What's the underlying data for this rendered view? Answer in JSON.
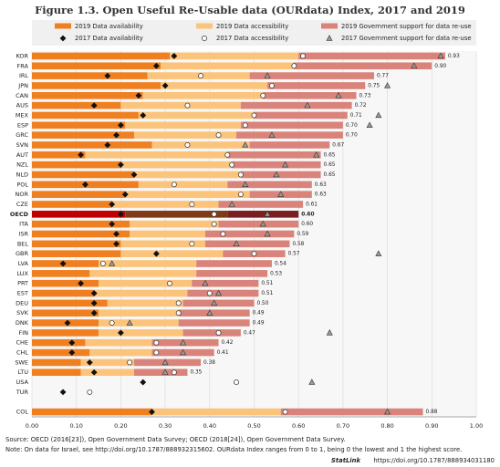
{
  "chart_data": {
    "type": "stacked-bar-markers",
    "title": "Figure 1.3. Open Useful Re-Usable data (OURdata) Index, 2017 and 2019",
    "categories": [
      "KOR",
      "FRA",
      "IRL",
      "JPN",
      "CAN",
      "AUS",
      "MEX",
      "ESP",
      "GRC",
      "SVN",
      "AUT",
      "NZL",
      "NLD",
      "POL",
      "NOR",
      "CZE",
      "OECD",
      "ITA",
      "ISR",
      "BEL",
      "GBR",
      "LVA",
      "LUX",
      "PRT",
      "EST",
      "DEU",
      "SVK",
      "DNK",
      "FIN",
      "CHE",
      "CHL",
      "SWE",
      "LTU",
      "USA",
      "TUR",
      null,
      "COL"
    ],
    "highlight": "OECD",
    "series": [
      {
        "name": "2019 Data availability",
        "color": "#f07f1f",
        "highlight_color": "#c00000",
        "values": [
          0.31,
          0.29,
          0.26,
          0.29,
          0.25,
          0.2,
          0.24,
          0.21,
          0.23,
          0.27,
          0.12,
          0.2,
          0.23,
          0.24,
          0.21,
          0.18,
          0.21,
          0.22,
          0.22,
          0.2,
          0.2,
          0.15,
          0.13,
          0.15,
          0.14,
          0.17,
          0.15,
          0.15,
          0.15,
          0.12,
          0.13,
          0.11,
          0.11,
          null,
          null,
          null,
          0.27
        ]
      },
      {
        "name": "2019 Data accessibility",
        "color": "#fbc47a",
        "highlight_color": "#7f3b16",
        "values": [
          0.29,
          0.3,
          0.23,
          0.24,
          0.27,
          0.27,
          0.26,
          0.26,
          0.23,
          0.22,
          0.32,
          0.25,
          0.24,
          0.2,
          0.28,
          0.24,
          0.23,
          0.2,
          0.17,
          0.19,
          0.23,
          0.22,
          0.24,
          0.21,
          0.21,
          0.17,
          0.18,
          0.18,
          0.19,
          0.15,
          0.14,
          0.12,
          0.12,
          null,
          null,
          null,
          0.29
        ]
      },
      {
        "name": "2019 Government support for data re-use",
        "color": "#d9837a",
        "highlight_color": "#7a1f1f",
        "values": [
          0.33,
          0.31,
          0.28,
          0.22,
          0.21,
          0.25,
          0.21,
          0.23,
          0.24,
          0.18,
          0.21,
          0.2,
          0.18,
          0.19,
          0.14,
          0.19,
          0.16,
          0.18,
          0.2,
          0.19,
          0.14,
          0.17,
          0.16,
          0.15,
          0.16,
          0.16,
          0.16,
          0.16,
          0.13,
          0.15,
          0.14,
          0.15,
          0.12,
          null,
          null,
          null,
          0.32
        ]
      }
    ],
    "totals": [
      0.93,
      0.9,
      0.77,
      0.75,
      0.73,
      0.72,
      0.71,
      0.7,
      0.7,
      0.67,
      0.65,
      0.65,
      0.65,
      0.63,
      0.63,
      0.61,
      0.6,
      0.6,
      0.59,
      0.58,
      0.57,
      0.54,
      0.53,
      0.51,
      0.51,
      0.5,
      0.49,
      0.49,
      0.47,
      0.42,
      0.41,
      0.38,
      0.35,
      null,
      null,
      null,
      0.88
    ],
    "total_labels": [
      "0.93",
      "0.90",
      "0.77",
      "0.75",
      "0.73",
      "0.72",
      "0.71",
      "0.70",
      "0.70",
      "0.67",
      "0.65",
      "0.65",
      "0.65",
      "0.63",
      "0.63",
      "0.61",
      "0.60",
      "0.60",
      "0.59",
      "0.58",
      "0.57",
      "0.54",
      "0.53",
      "0.51",
      "0.51",
      "0.50",
      "0.49",
      "0.49",
      "0.47",
      "0.42",
      "0.41",
      "0.38",
      "0.35",
      null,
      null,
      null,
      "0.88"
    ],
    "markers": [
      {
        "name": "2017 Data availability",
        "shape": "diamond",
        "color": "#111111",
        "values": [
          0.32,
          0.28,
          0.17,
          0.3,
          0.24,
          0.14,
          0.25,
          0.2,
          0.19,
          0.17,
          0.11,
          0.2,
          0.23,
          0.12,
          0.21,
          0.18,
          0.2,
          0.18,
          0.19,
          0.19,
          0.28,
          0.07,
          null,
          0.11,
          0.14,
          0.14,
          0.14,
          0.08,
          0.2,
          0.09,
          0.09,
          0.13,
          0.14,
          0.25,
          0.07,
          null,
          0.27
        ]
      },
      {
        "name": "2017 Data accessibility",
        "shape": "circle",
        "color": "#ffffff",
        "values": [
          0.61,
          0.59,
          0.38,
          0.54,
          0.52,
          0.35,
          0.5,
          0.48,
          0.42,
          0.35,
          0.44,
          0.45,
          0.47,
          0.32,
          0.47,
          0.36,
          0.41,
          0.41,
          0.43,
          0.36,
          0.5,
          0.16,
          null,
          0.31,
          0.4,
          0.33,
          0.33,
          0.18,
          0.42,
          0.28,
          0.28,
          0.22,
          0.32,
          0.46,
          0.13,
          null,
          0.57
        ]
      },
      {
        "name": "2017 Government support for data re-use",
        "shape": "triangle",
        "color": "#9a9a9a",
        "values": [
          0.92,
          0.86,
          0.53,
          0.8,
          0.69,
          0.62,
          0.78,
          0.76,
          0.54,
          0.48,
          0.64,
          0.57,
          0.55,
          0.48,
          0.56,
          0.45,
          0.53,
          0.52,
          0.53,
          0.46,
          0.78,
          0.18,
          null,
          0.39,
          0.42,
          0.41,
          0.4,
          0.22,
          0.67,
          0.34,
          0.34,
          0.3,
          0.3,
          0.63,
          null,
          null,
          0.8
        ]
      }
    ],
    "xlim": [
      0,
      1.04
    ],
    "xticks": [
      {
        "value": 0,
        "label": "0.00"
      },
      {
        "value": 0.1,
        "label": "0.10"
      },
      {
        "value": 0.2,
        "label": "0.20"
      },
      {
        "value": 0.3,
        "label": "0.30"
      },
      {
        "value": 0.4,
        "label": "0.40"
      },
      {
        "value": 0.5,
        "label": "0.50"
      },
      {
        "value": 0.6,
        "label": "0.60"
      },
      {
        "value": 0.7,
        "label": "0.70"
      },
      {
        "value": 0.8,
        "label": "0.80"
      },
      {
        "value": 0.9,
        "label": "0.90"
      },
      {
        "value": 1,
        "label": "1.00"
      }
    ],
    "grid": true,
    "source": "Source: OECD (2016[23]), Open Government Data Survey; OECD (2018[24]), Open Government Data Survey.",
    "note": "Note: On data for Israel, see http://doi.org/10.1787/888932315602. OURdata Index ranges from 0 to 1, being 0 the lowest and 1 the highest score.",
    "statlink": "StatLink",
    "statlink_url": "https://doi.org/10.1787/888934031180"
  }
}
